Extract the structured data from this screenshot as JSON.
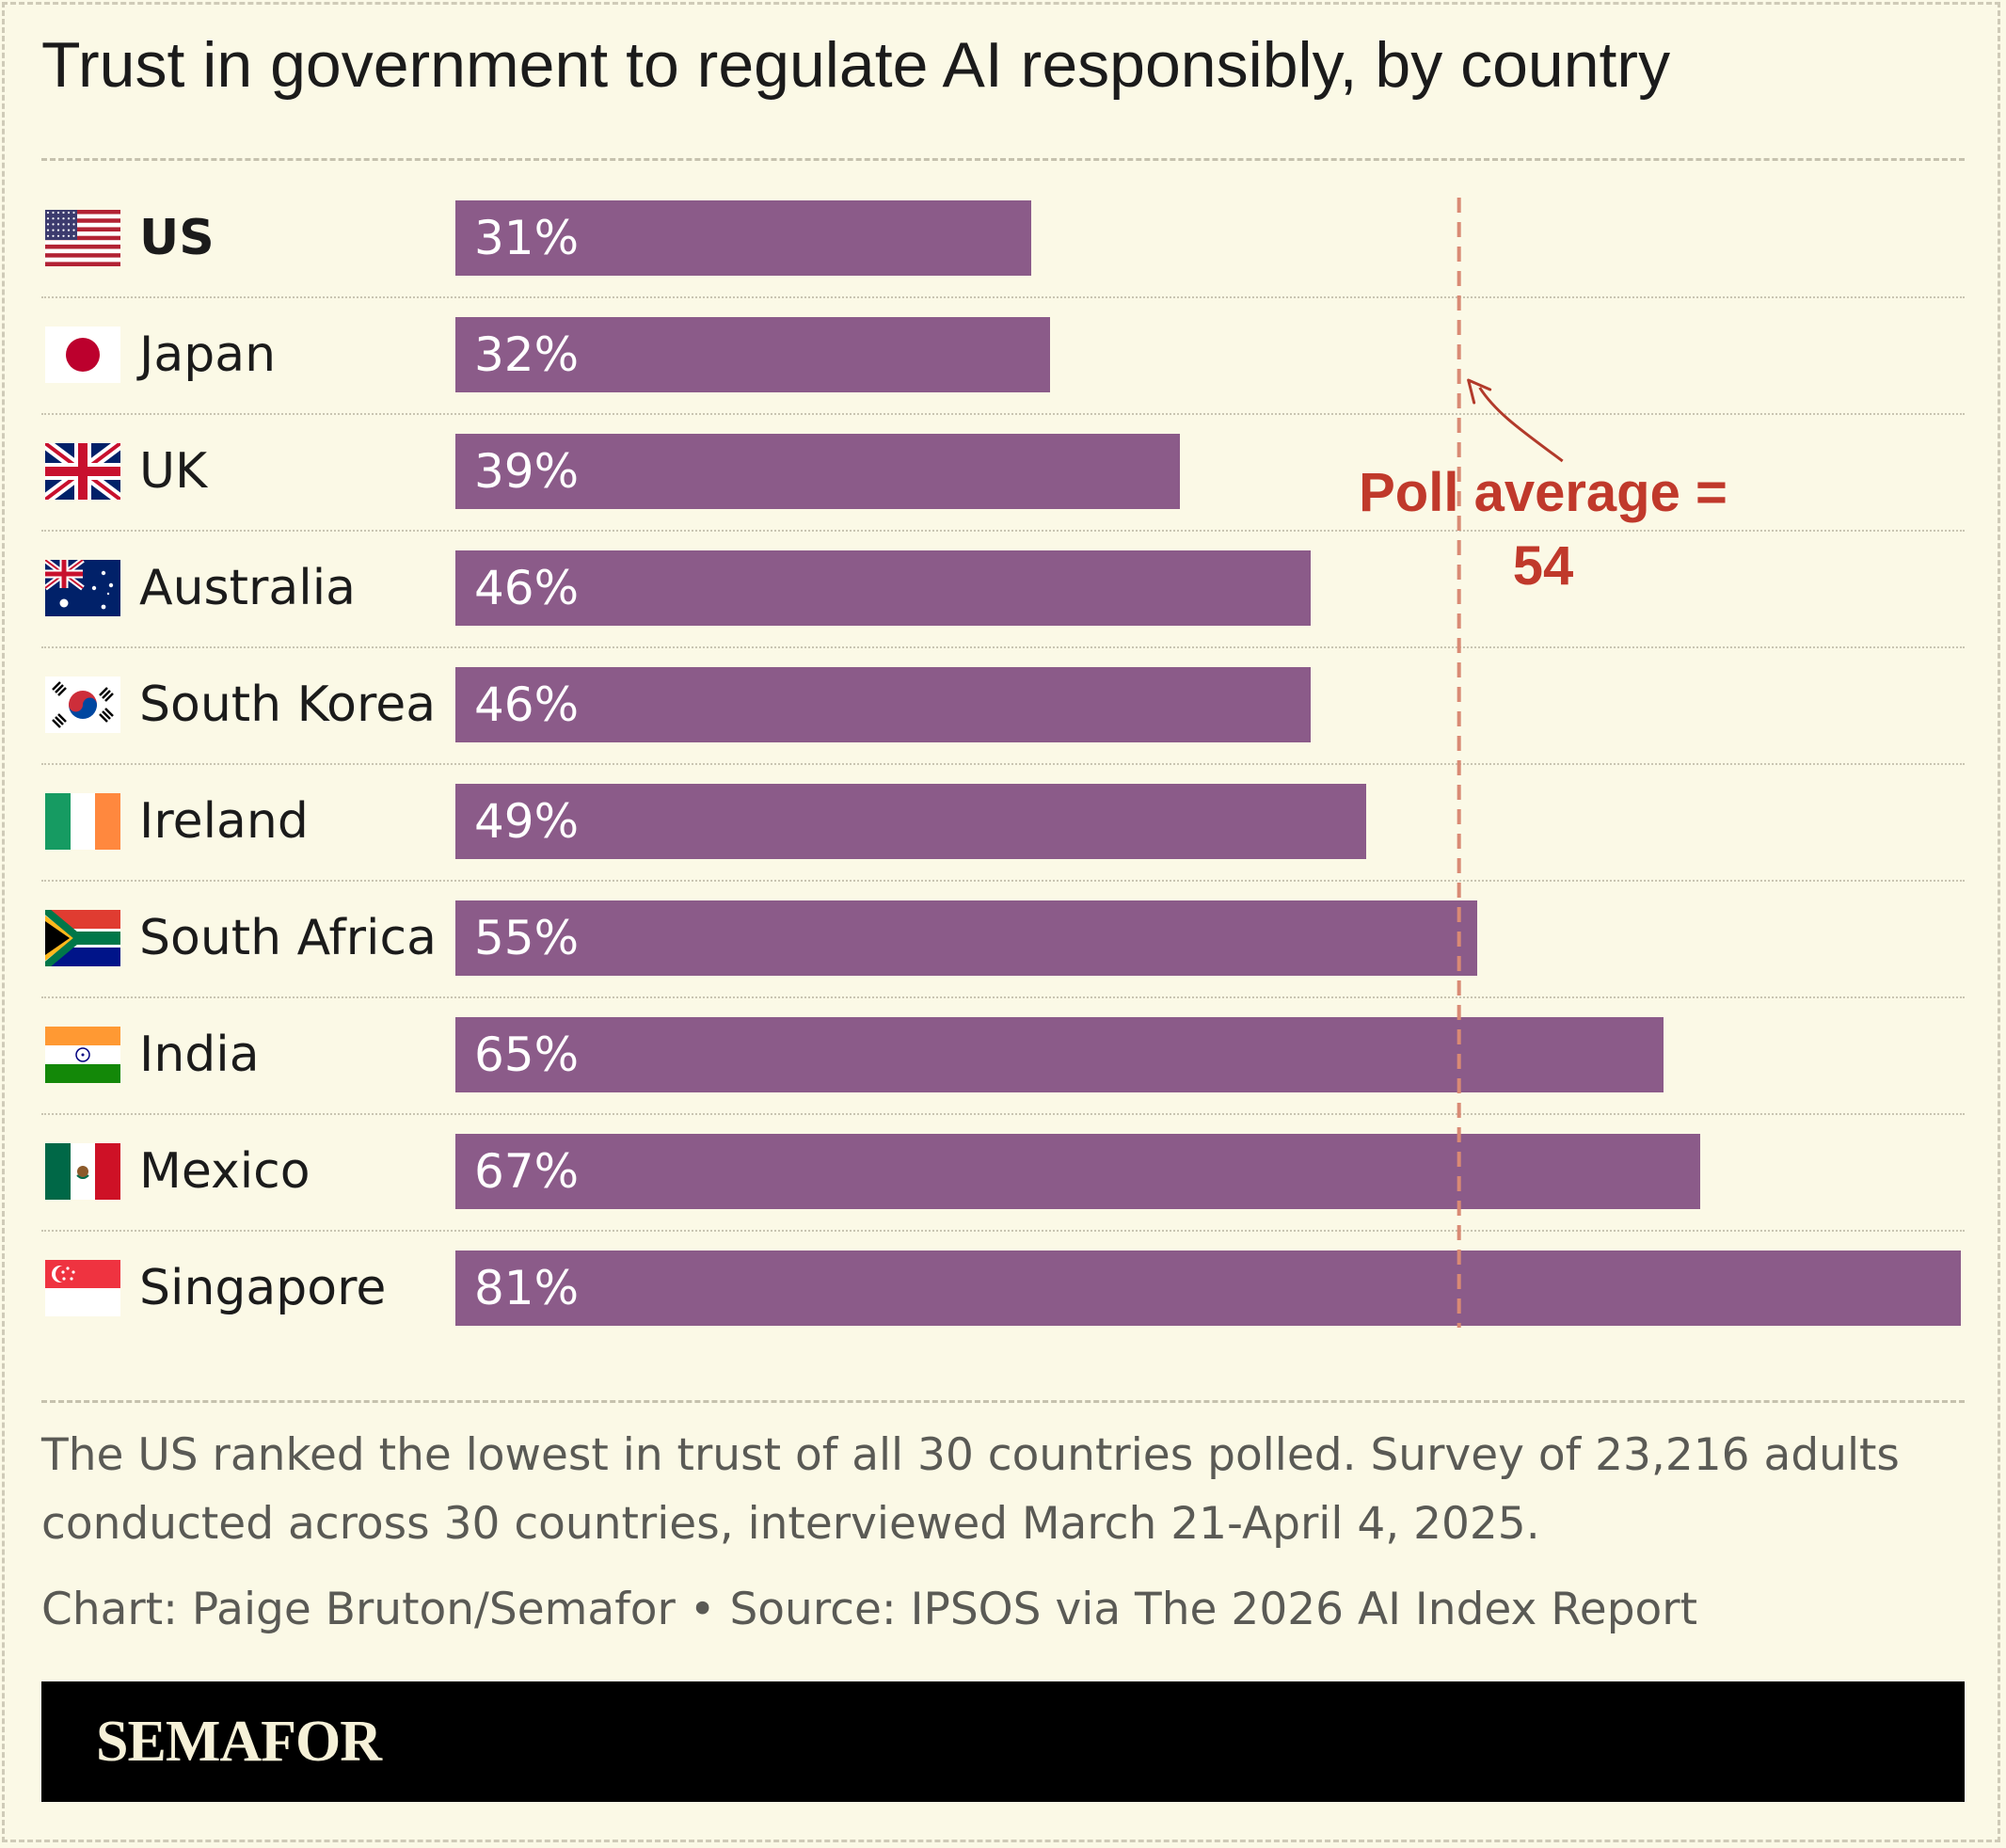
{
  "title": "Trust in government to regulate AI responsibly, by country",
  "chart_data": {
    "type": "bar",
    "orientation": "horizontal",
    "title": "Trust in government to regulate AI responsibly, by country",
    "categories": [
      "US",
      "Japan",
      "UK",
      "Australia",
      "South Korea",
      "Ireland",
      "South Africa",
      "India",
      "Mexico",
      "Singapore"
    ],
    "values": [
      31,
      32,
      39,
      46,
      46,
      49,
      55,
      65,
      67,
      81
    ],
    "value_labels": [
      "31%",
      "32%",
      "39%",
      "46%",
      "46%",
      "49%",
      "55%",
      "65%",
      "67%",
      "81%"
    ],
    "xlim": [
      0,
      81
    ],
    "bar_color": "#8b5b89",
    "highlighted_category": "US",
    "reference_line": {
      "value": 54,
      "label_line1": "Poll average =",
      "label_line2": "54",
      "color": "#c0392b"
    },
    "flags": [
      "us-flag-icon",
      "japan-flag-icon",
      "uk-flag-icon",
      "australia-flag-icon",
      "south-korea-flag-icon",
      "ireland-flag-icon",
      "south-africa-flag-icon",
      "india-flag-icon",
      "mexico-flag-icon",
      "singapore-flag-icon"
    ]
  },
  "note": "The US ranked the lowest in trust of all 30 countries polled. Survey of 23,216 adults conducted across 30 countries, interviewed March 21-April 4, 2025.",
  "credit": "Chart: Paige Bruton/Semafor • Source: IPSOS via The 2026 AI Index Report",
  "brand": "SEMAFOR"
}
